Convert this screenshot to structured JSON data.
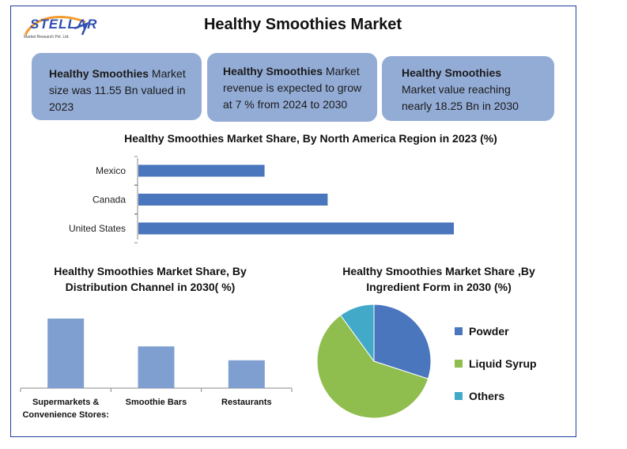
{
  "logo": {
    "name": "STELLAR",
    "tagline": "Market Research Pvt. Ltd."
  },
  "title": "Healthy Smoothies Market",
  "boxes": [
    {
      "bold": "Healthy Smoothies",
      "text": " Market size was 11.55 Bn valued in 2023"
    },
    {
      "bold": "Healthy Smoothies",
      "text": " Market revenue is expected to grow at 7 % from 2024 to 2030"
    },
    {
      "bold": "Healthy Smoothies",
      "text": " Market value reaching nearly 18.25 Bn in 2030"
    }
  ],
  "chart_titles": {
    "region": "Healthy Smoothies Market Share, By North America Region in 2023 (%)",
    "distribution": "Healthy Smoothies Market Share, By Distribution Channel  in 2030( %)",
    "ingredient": "Healthy Smoothies Market Share ,By Ingredient Form in 2030 (%)"
  },
  "colors": {
    "bar_region": "#4a76bd",
    "bar_dist": "#7f9fd0",
    "powder": "#4a76bd",
    "liquid": "#8fbd4e",
    "others": "#42a9c9",
    "frame": "#1f3fa0"
  },
  "chart_data": [
    {
      "type": "bar",
      "orientation": "horizontal",
      "title": "Healthy Smoothies Market Share, By North America Region in 2023 (%)",
      "categories": [
        "Mexico",
        "Canada",
        "United States"
      ],
      "values": [
        16,
        24,
        40
      ],
      "xlim": [
        0,
        40
      ]
    },
    {
      "type": "bar",
      "title": "Healthy Smoothies Market Share, By Distribution Channel  in 2030( %)",
      "categories": [
        "Supermarkets & Convenience Stores:",
        "Smoothie Bars",
        "Restaurants"
      ],
      "values": [
        50,
        30,
        20
      ],
      "ylim": [
        0,
        50
      ]
    },
    {
      "type": "pie",
      "title": "Healthy Smoothies Market Share ,By Ingredient Form in 2030 (%)",
      "categories": [
        "Powder",
        "Liquid Syrup",
        "Others"
      ],
      "values": [
        30,
        60,
        10
      ],
      "legend": "right"
    }
  ]
}
